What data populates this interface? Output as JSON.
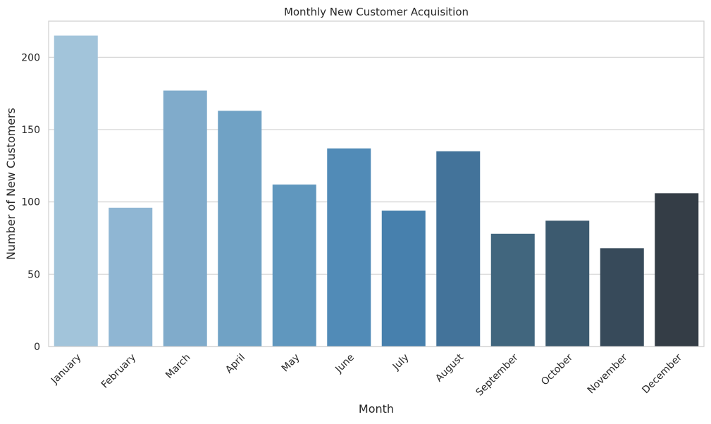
{
  "chart_data": {
    "type": "bar",
    "title": "Monthly New Customer Acquisition",
    "xlabel": "Month",
    "ylabel": "Number of New Customers",
    "categories": [
      "January",
      "February",
      "March",
      "April",
      "May",
      "June",
      "July",
      "August",
      "September",
      "October",
      "November",
      "December"
    ],
    "values": [
      215,
      96,
      177,
      163,
      112,
      137,
      94,
      135,
      78,
      87,
      68,
      106
    ],
    "ylim": [
      0,
      225
    ],
    "yticks": [
      0,
      50,
      100,
      150,
      200
    ],
    "grid": true,
    "colors": [
      "#a2c4da",
      "#8fb6d3",
      "#80abcb",
      "#70a2c5",
      "#6097be",
      "#518bb7",
      "#4780ad",
      "#43739a",
      "#41667e",
      "#3c5a6f",
      "#374a5a",
      "#343d46"
    ]
  }
}
